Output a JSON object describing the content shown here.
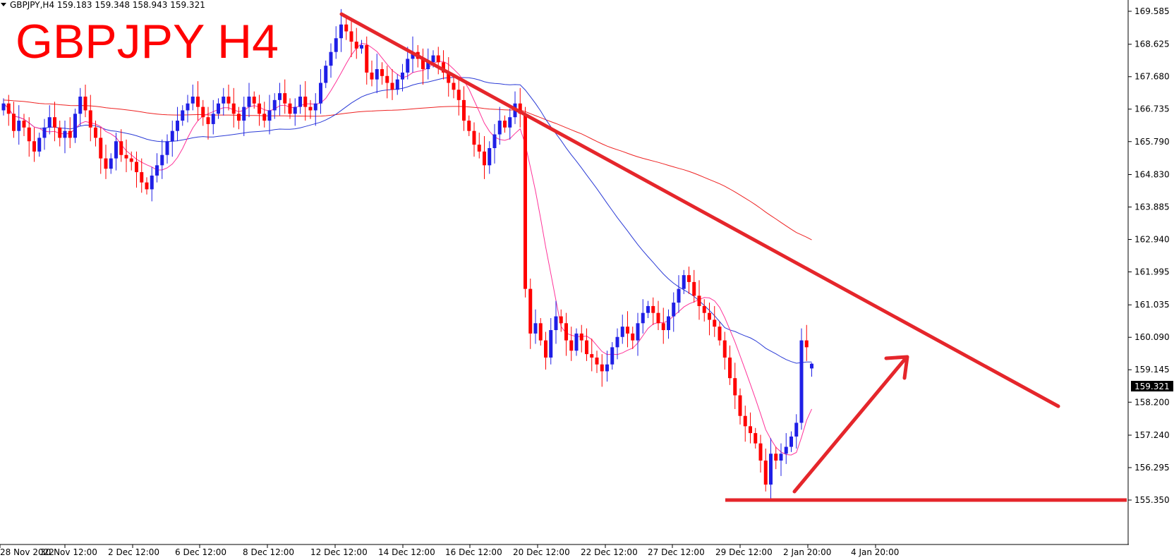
{
  "header": {
    "info_line": "GBPJPY,H4  159.183 159.348 158.943 159.321",
    "overlay_title": "GBPJPY H4"
  },
  "price_tag": "159.321",
  "colors": {
    "bull": "#1f1fe6",
    "bear": "#ff0000",
    "trendline": "#e5262b",
    "ma_fast": "#ff3399",
    "ma_mid": "#2b3bd6",
    "ma_slow": "#ee2222"
  },
  "chart_data": {
    "type": "candlestick",
    "symbol": "GBPJPY",
    "timeframe": "H4",
    "ohlc_last": {
      "open": 159.183,
      "high": 159.348,
      "low": 158.943,
      "close": 159.321
    },
    "y_ticks": [
      169.585,
      168.625,
      167.68,
      166.735,
      165.79,
      164.83,
      163.885,
      162.94,
      161.995,
      161.035,
      160.09,
      159.145,
      158.2,
      157.24,
      156.295,
      155.35
    ],
    "x_ticks": [
      "28 Nov 2022",
      "30 Nov 12:00",
      "2 Dec 12:00",
      "6 Dec 12:00",
      "8 Dec 12:00",
      "12 Dec 12:00",
      "14 Dec 12:00",
      "16 Dec 12:00",
      "20 Dec 12:00",
      "22 Dec 12:00",
      "27 Dec 12:00",
      "29 Dec 12:00",
      "2 Jan 20:00",
      "4 Jan 20:00"
    ],
    "ylim": [
      155.2,
      169.9
    ],
    "closes": [
      166.9,
      166.6,
      166.1,
      166.4,
      166.2,
      165.8,
      165.5,
      165.9,
      166.2,
      166.5,
      166.2,
      165.9,
      166.1,
      165.9,
      166.6,
      167.1,
      166.7,
      166.2,
      165.9,
      165.3,
      165.0,
      165.3,
      165.8,
      165.4,
      165.3,
      165.2,
      164.9,
      164.6,
      164.4,
      164.8,
      165.1,
      165.4,
      165.8,
      166.1,
      166.4,
      166.7,
      166.9,
      167.1,
      166.8,
      166.5,
      166.3,
      166.6,
      166.9,
      167.1,
      166.9,
      166.6,
      166.4,
      166.8,
      167.1,
      166.9,
      166.6,
      166.4,
      166.7,
      167.0,
      167.2,
      166.9,
      166.6,
      166.8,
      167.1,
      166.8,
      166.7,
      166.9,
      167.5,
      168.0,
      168.4,
      168.8,
      169.2,
      169.0,
      168.7,
      168.5,
      168.6,
      167.8,
      167.6,
      167.9,
      167.7,
      167.5,
      167.3,
      167.6,
      167.8,
      168.2,
      168.4,
      168.2,
      167.9,
      168.1,
      168.3,
      168.1,
      167.8,
      167.5,
      167.3,
      167.0,
      166.4,
      166.1,
      165.7,
      165.5,
      165.1,
      165.6,
      166.0,
      166.4,
      166.2,
      166.5,
      166.9,
      166.6,
      161.5,
      160.2,
      160.5,
      160.0,
      159.5,
      160.3,
      160.7,
      160.5,
      160.0,
      159.7,
      160.2,
      160.0,
      159.6,
      159.5,
      159.3,
      159.1,
      159.3,
      159.8,
      160.1,
      160.4,
      160.2,
      160.0,
      160.5,
      160.8,
      161.0,
      160.8,
      160.5,
      160.3,
      160.7,
      161.1,
      161.5,
      161.9,
      161.7,
      161.3,
      161.0,
      160.8,
      160.6,
      160.4,
      160.0,
      159.5,
      158.9,
      158.4,
      157.8,
      157.5,
      157.3,
      157.0,
      156.5,
      155.8,
      156.7,
      156.5,
      156.7,
      156.9,
      157.2,
      157.6,
      160.0,
      159.8,
      159.321
    ]
  },
  "annotations": {
    "trendline": {
      "from": [
        "12 Dec 00:00",
        169.4
      ],
      "to": [
        "after 4 Jan 20:00",
        158.0
      ]
    },
    "support_line": {
      "price": 155.35
    },
    "arrow": {
      "direction": "up-right"
    }
  }
}
